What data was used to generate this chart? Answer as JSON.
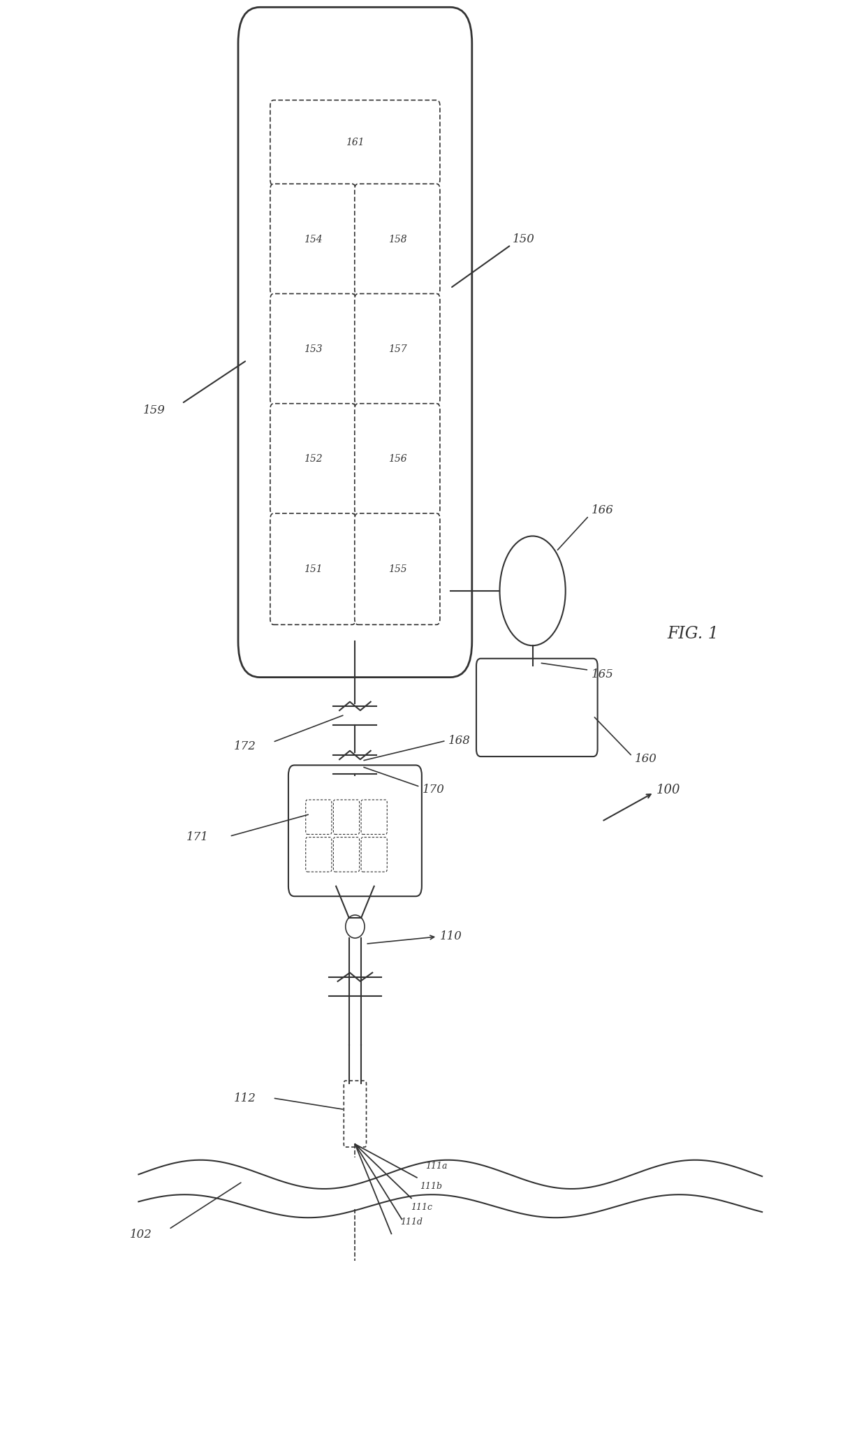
{
  "bg_color": "#ffffff",
  "line_color": "#333333",
  "fig_label": "FIG. 1",
  "system_label": "100",
  "ipu_label": "150",
  "ipu_spine_label": "159",
  "ipu_boxes": [
    {
      "label": "161",
      "row": 0,
      "col": 0,
      "colspan": 2
    },
    {
      "label": "154",
      "row": 1,
      "col": 0,
      "colspan": 1
    },
    {
      "label": "158",
      "row": 1,
      "col": 1,
      "colspan": 1
    },
    {
      "label": "153",
      "row": 2,
      "col": 0,
      "colspan": 1
    },
    {
      "label": "157",
      "row": 2,
      "col": 1,
      "colspan": 1
    },
    {
      "label": "152",
      "row": 3,
      "col": 0,
      "colspan": 1
    },
    {
      "label": "156",
      "row": 3,
      "col": 1,
      "colspan": 1
    },
    {
      "label": "151",
      "row": 4,
      "col": 0,
      "colspan": 1
    },
    {
      "label": "155",
      "row": 4,
      "col": 1,
      "colspan": 1
    }
  ],
  "circle_label": "166",
  "box160_label": "160",
  "lead_label": "110",
  "electrode_array_label": "171",
  "connector_label": "172",
  "ipu_connector_label": "168",
  "lead_connector_label": "170",
  "spinal_cord_label": "102",
  "electrode_tip_label": "112",
  "electrodes": [
    "111a",
    "111b",
    "111c",
    "111d"
  ]
}
